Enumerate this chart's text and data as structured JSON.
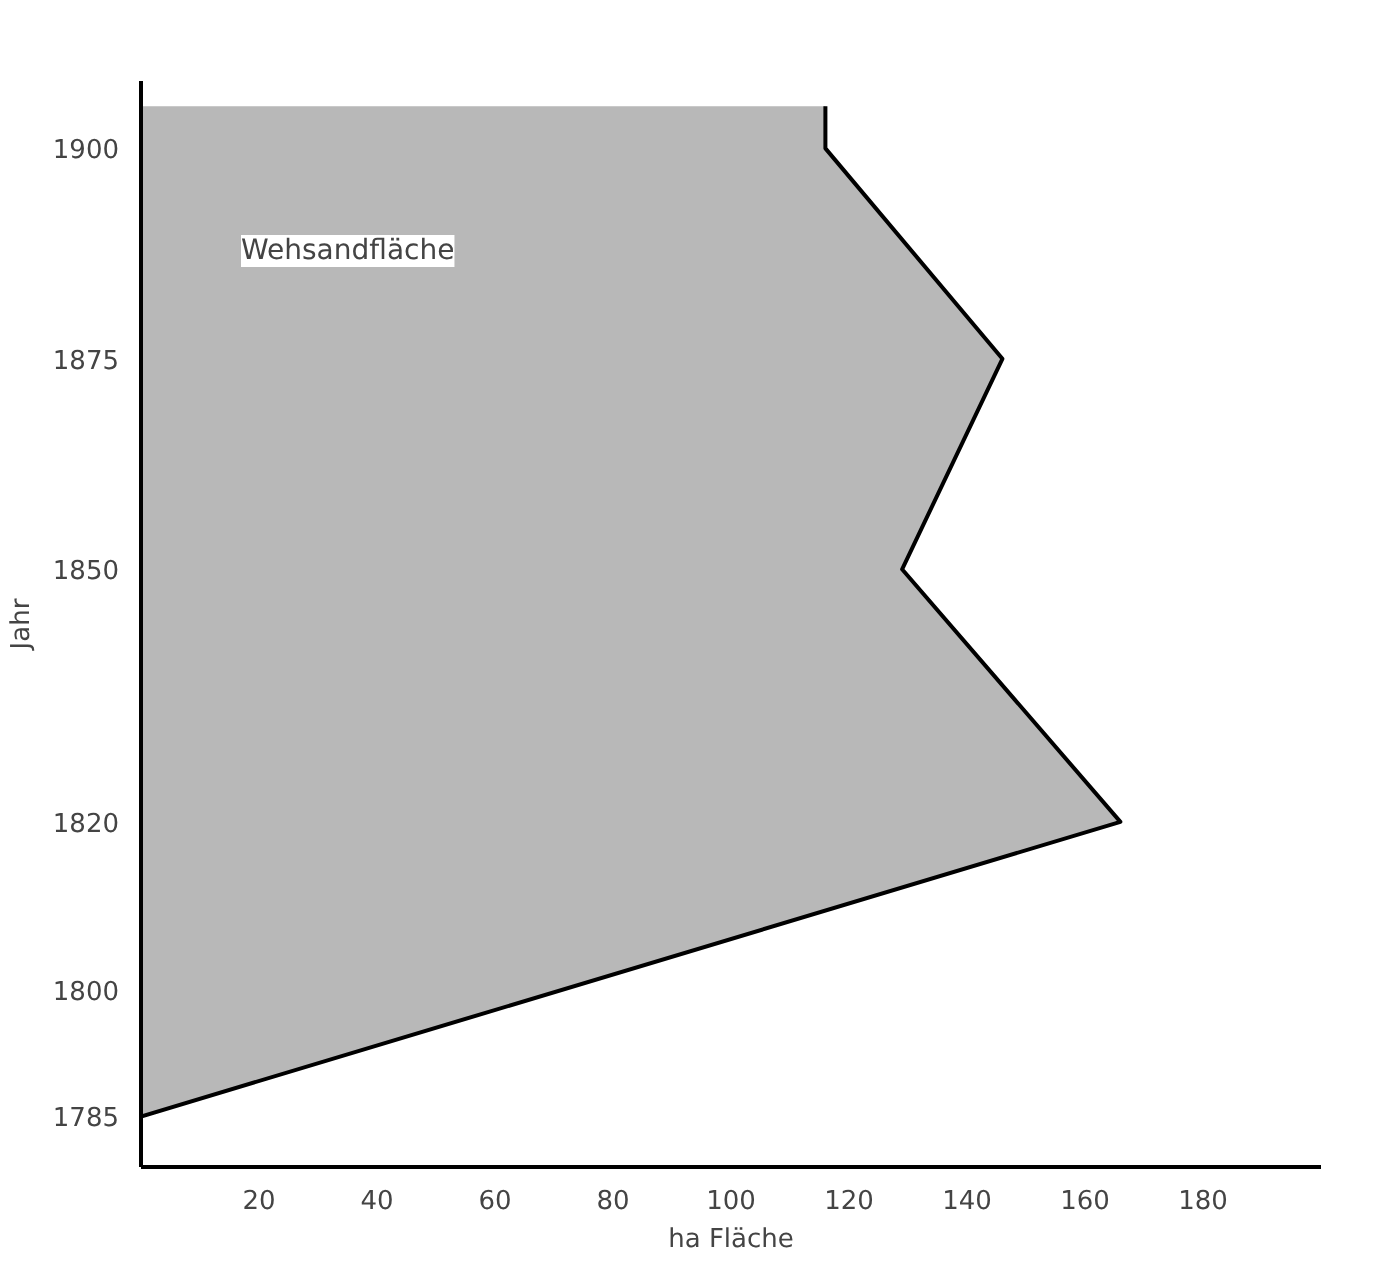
{
  "chart_data": {
    "type": "area",
    "orientation": "horizontal",
    "xlabel": "ha Fläche",
    "ylabel": "Jahr",
    "annotations": [
      "Wehsandfläche"
    ],
    "x": [
      1785,
      1820,
      1850,
      1875,
      1900,
      1905
    ],
    "series": [
      {
        "color": "#b8b8b8",
        "values": [
          0,
          166,
          129,
          146,
          116,
          116
        ]
      }
    ],
    "xlim": [
      0,
      200
    ],
    "xticks": [
      20,
      40,
      60,
      80,
      100,
      120,
      140,
      160,
      180
    ],
    "ylim": [
      1779,
      1908
    ],
    "yticks": [
      1785,
      1800,
      1820,
      1850,
      1875,
      1900
    ],
    "grid": false
  }
}
